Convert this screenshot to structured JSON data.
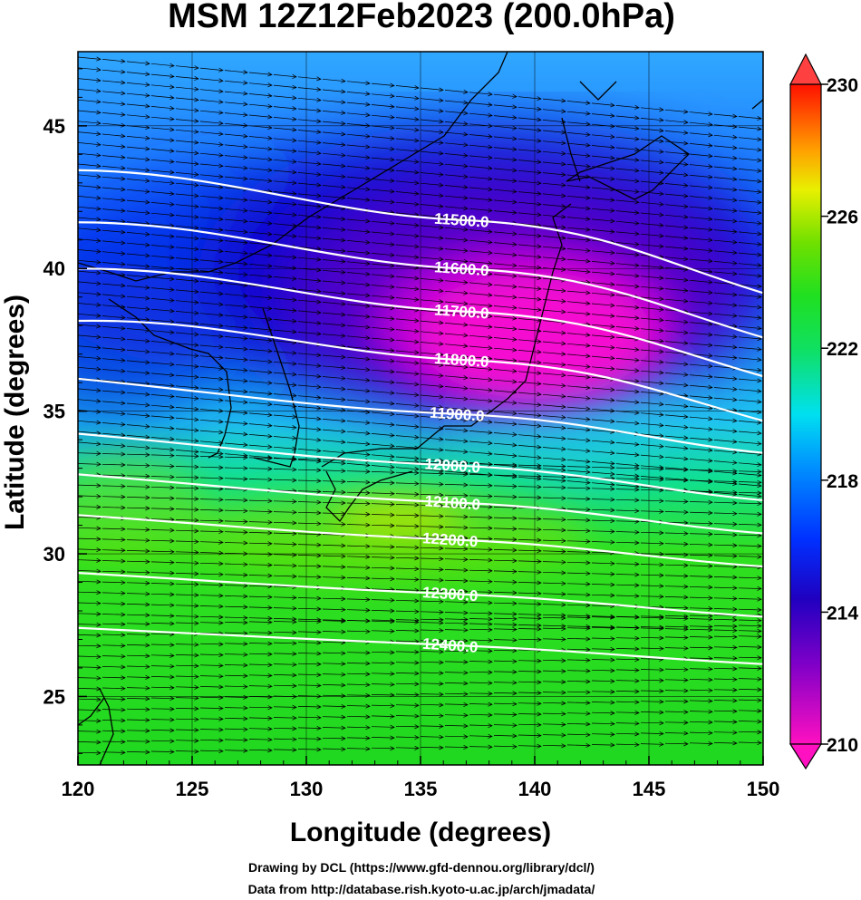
{
  "title": "MSM 12Z12Feb2023 (200.0hPa)",
  "x_axis": {
    "label": "Longitude (degrees)",
    "ticks": [
      "120",
      "125",
      "130",
      "135",
      "140",
      "145",
      "150"
    ]
  },
  "y_axis": {
    "label": "Latitude  (degrees)",
    "ticks": [
      "25",
      "30",
      "35",
      "40",
      "45"
    ]
  },
  "colorbar": {
    "ticks": [
      "210",
      "214",
      "218",
      "222",
      "226",
      "230"
    ],
    "min": 210,
    "max": 230
  },
  "contours": [
    {
      "label": "11500.0",
      "lon": 136.8,
      "lat": 41.7
    },
    {
      "label": "11600.0",
      "lon": 136.8,
      "lat": 40.0
    },
    {
      "label": "11700.0",
      "lon": 136.8,
      "lat": 38.5
    },
    {
      "label": "11800.0",
      "lon": 136.8,
      "lat": 36.8
    },
    {
      "label": "11900.0",
      "lon": 136.6,
      "lat": 34.9
    },
    {
      "label": "12000.0",
      "lon": 136.4,
      "lat": 33.1
    },
    {
      "label": "12100.0",
      "lon": 136.4,
      "lat": 31.8
    },
    {
      "label": "12200.0",
      "lon": 136.3,
      "lat": 30.5
    },
    {
      "label": "12300.0",
      "lon": 136.3,
      "lat": 28.6
    },
    {
      "label": "12400.0",
      "lon": 136.3,
      "lat": 26.8
    }
  ],
  "credits": {
    "line1": "Drawing by DCL (https://www.gfd-dennou.org/library/dcl/)",
    "line2": "Data from http://database.rish.kyoto-u.ac.jp/arch/jmadata/"
  },
  "map": {
    "lon_range": [
      120,
      150
    ],
    "lat_range": [
      22.6,
      47.6
    ],
    "variable": "temperature",
    "overlay": "geopotential height contours and wind vectors"
  },
  "colors": {
    "cold": "#ff00cc",
    "purple": "#7000cc",
    "blue": "#0a00e0",
    "cyan": "#00ccff",
    "green": "#10e020",
    "yellow": "#f0f000",
    "warm": "#ff2000"
  }
}
